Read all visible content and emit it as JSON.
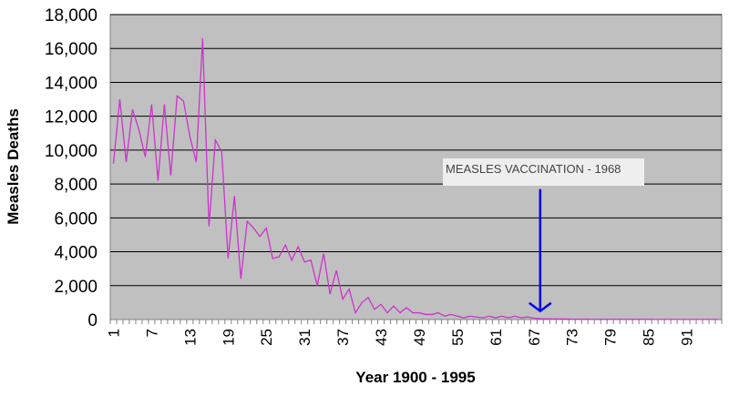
{
  "chart_data": {
    "type": "line",
    "title": "",
    "xlabel": "Year 1900 - 1995",
    "ylabel": "Measles Deaths",
    "ylim": [
      0,
      18000
    ],
    "yticks": [
      0,
      2000,
      4000,
      6000,
      8000,
      10000,
      12000,
      14000,
      16000,
      18000
    ],
    "ytick_labels": [
      "0",
      "2,000",
      "4,000",
      "6,000",
      "8,000",
      "10,000",
      "12,000",
      "14,000",
      "16,000",
      "18,000"
    ],
    "xtick_labels": [
      "1",
      "7",
      "13",
      "19",
      "25",
      "31",
      "37",
      "43",
      "49",
      "55",
      "61",
      "67",
      "73",
      "79",
      "85",
      "91"
    ],
    "grid": true,
    "background_color": "#c0c0c0",
    "line_color": "#cc33cc",
    "arrow_color": "#0000ee",
    "x": [
      1,
      2,
      3,
      4,
      5,
      6,
      7,
      8,
      9,
      10,
      11,
      12,
      13,
      14,
      15,
      16,
      17,
      18,
      19,
      20,
      21,
      22,
      23,
      24,
      25,
      26,
      27,
      28,
      29,
      30,
      31,
      32,
      33,
      34,
      35,
      36,
      37,
      38,
      39,
      40,
      41,
      42,
      43,
      44,
      45,
      46,
      47,
      48,
      49,
      50,
      51,
      52,
      53,
      54,
      55,
      56,
      57,
      58,
      59,
      60,
      61,
      62,
      63,
      64,
      65,
      66,
      67,
      68,
      69,
      70,
      71,
      72,
      73,
      74,
      75,
      76,
      77,
      78,
      79,
      80,
      81,
      82,
      83,
      84,
      85,
      86,
      87,
      88,
      89,
      90,
      91,
      92,
      93,
      94,
      95,
      96
    ],
    "series": [
      {
        "values": [
          9200,
          13000,
          9300,
          12400,
          11200,
          9600,
          12700,
          8200,
          12700,
          8500,
          13200,
          12900,
          10800,
          9300,
          16600,
          5500,
          10600,
          9900,
          3600,
          7300,
          2400,
          5800,
          5400,
          4900,
          5400,
          3600,
          3700,
          4400,
          3500,
          4300,
          3400,
          3500,
          2000,
          3900,
          1500,
          2900,
          1200,
          1800,
          400,
          1000,
          1300,
          600,
          900,
          400,
          800,
          400,
          700,
          400,
          400,
          300,
          300,
          400,
          200,
          300,
          200,
          100,
          200,
          150,
          100,
          200,
          100,
          200,
          100,
          200,
          100,
          150,
          80,
          50,
          40,
          40,
          30,
          30,
          20,
          20,
          20,
          15,
          15,
          10,
          10,
          10,
          10,
          10,
          10,
          10,
          10,
          5,
          5,
          5,
          5,
          5,
          5,
          5,
          5,
          5,
          5,
          5
        ]
      }
    ],
    "annotation": {
      "text": "MEASLES VACCINATION - 1968",
      "x": 68,
      "arrow_from": 7700,
      "arrow_to": 500
    }
  }
}
